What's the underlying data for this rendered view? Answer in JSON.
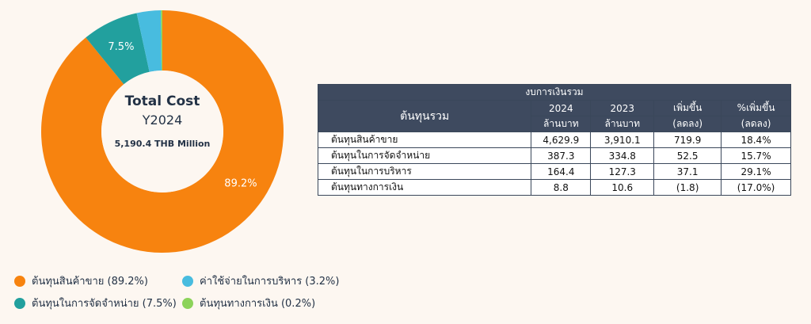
{
  "chart_data": {
    "type": "pie",
    "categories": [
      "ต้นทุนสินค้าขาย",
      "ต้นทุนในการจัดจำหน่าย",
      "ค่าใช้จ่ายในการบริหาร",
      "ต้นทุนทางการเงิน"
    ],
    "values": [
      89.2,
      7.5,
      3.2,
      0.2
    ],
    "slice_labels": [
      "89.2%",
      "7.5%",
      "",
      ""
    ],
    "colors": [
      "#f7830f",
      "#22a09e",
      "#48bcdf",
      "#8cd35a"
    ],
    "center_title": "Total Cost",
    "center_year": "Y2024",
    "center_total": "5,190.4 THB Million"
  },
  "legend": [
    {
      "label": "ต้นทุนสินค้าขาย (89.2%)",
      "color": "#f7830f"
    },
    {
      "label": "ต้นทุนในการจัดจำหน่าย (7.5%)",
      "color": "#22a09e"
    },
    {
      "label": "ค่าใช้จ่ายในการบริหาร (3.2%)",
      "color": "#48bcdf"
    },
    {
      "label": "ต้นทุนทางการเงิน (0.2%)",
      "color": "#8cd35a"
    }
  ],
  "table": {
    "title": "งบการเงินรวม",
    "row_header": "ต้นทุนรวม",
    "columns": [
      {
        "top": "2024",
        "bottom": "ล้านบาท"
      },
      {
        "top": "2023",
        "bottom": "ล้านบาท"
      },
      {
        "top": "เพิ่มขึ้น",
        "bottom": "(ลดลง)"
      },
      {
        "top": "%เพิ่มขึ้น",
        "bottom": "(ลดลง)"
      }
    ],
    "rows": [
      {
        "name": "ต้นทุนสินค้าขาย",
        "values": [
          "4,629.9",
          "3,910.1",
          "719.9",
          "18.4%"
        ]
      },
      {
        "name": "ต้นทุนในการจัดจำหน่าย",
        "values": [
          "387.3",
          "334.8",
          "52.5",
          "15.7%"
        ]
      },
      {
        "name": "ต้นทุนในการบริหาร",
        "values": [
          "164.4",
          "127.3",
          "37.1",
          "29.1%"
        ]
      },
      {
        "name": "ต้นทุนทางการเงิน",
        "values": [
          "8.8",
          "10.6",
          "(1.8)",
          "(17.0%)"
        ]
      }
    ]
  }
}
